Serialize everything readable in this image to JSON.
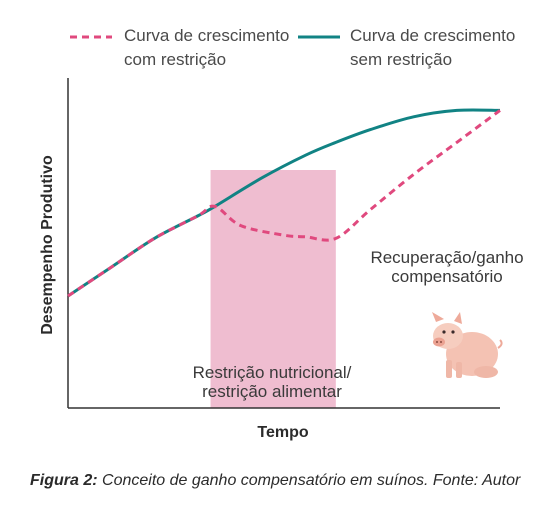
{
  "colors": {
    "restricted": "#e0497e",
    "unrestricted": "#118384",
    "restriction_band": "#efbdd0",
    "axis": "#333333"
  },
  "legend": {
    "restricted_line1": "Curva de crescimento",
    "restricted_line2": "com restrição",
    "unrestricted_line1": "Curva de crescimento",
    "unrestricted_line2": "sem restrição"
  },
  "caption": {
    "prefix": "Figura 2:",
    "text": " Conceito de ganho compensatório em suínos. Fonte: Autor"
  },
  "illustration": {
    "icon": "pig-icon"
  },
  "chart_data": {
    "type": "line",
    "xlabel": "Tempo",
    "ylabel": "Desempenho Produtivo",
    "xlim": [
      0,
      100
    ],
    "ylim": [
      0,
      100
    ],
    "grid": false,
    "legend_position": "top",
    "series": [
      {
        "name": "Curva de crescimento sem restrição",
        "style": "solid",
        "x": [
          0,
          10,
          20,
          30,
          34,
          45,
          55,
          62,
          70,
          80,
          90,
          100
        ],
        "y": [
          35,
          44,
          53,
          60,
          63,
          72,
          79,
          83,
          87,
          91,
          93,
          93
        ]
      },
      {
        "name": "Curva de crescimento com restrição",
        "style": "dashed",
        "x": [
          0,
          10,
          20,
          30,
          34,
          40,
          50,
          55,
          62,
          70,
          80,
          90,
          100
        ],
        "y": [
          35,
          44,
          53,
          60,
          63,
          57,
          54,
          53.5,
          53,
          62,
          73,
          83,
          93
        ]
      }
    ],
    "shaded_region": {
      "x": [
        33,
        62
      ],
      "label_line1": "Restrição nutricional/",
      "label_line2": "restrição alimentar"
    },
    "annotations": [
      {
        "line1": "Recuperação/ganho",
        "line2": "compensatório"
      }
    ]
  }
}
